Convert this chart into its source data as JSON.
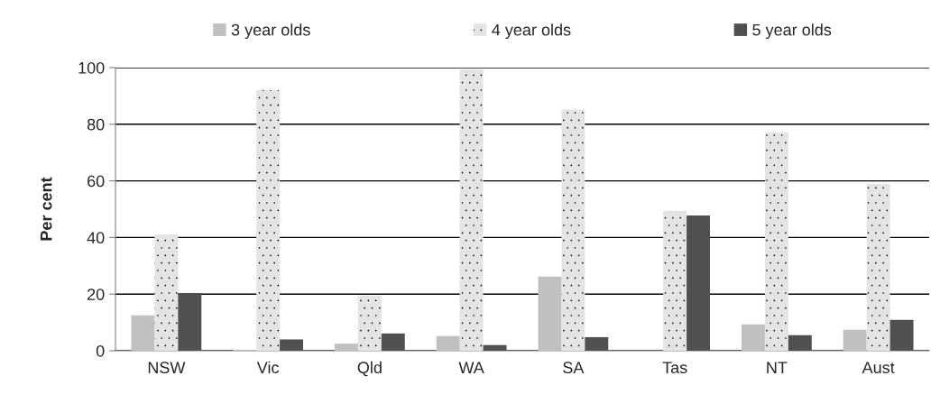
{
  "chart_data": {
    "type": "bar",
    "ylabel": "Per cent",
    "categories": [
      "NSW",
      "Vic",
      "Qld",
      "WA",
      "SA",
      "Tas",
      "NT",
      "Aust"
    ],
    "series": [
      {
        "name": "3 year olds",
        "color": "#c0c0c0",
        "values": [
          12.5,
          0.3,
          2.5,
          5.2,
          26.2,
          0,
          9.3,
          7.4
        ]
      },
      {
        "name": "4 year olds",
        "color": "#e4e4e4",
        "values": [
          41.1,
          92.1,
          19.5,
          99.4,
          85.2,
          49.4,
          77.1,
          58.9
        ]
      },
      {
        "name": "5 year olds",
        "color": "#505050",
        "values": [
          20.4,
          4.0,
          6.1,
          2.0,
          4.8,
          47.8,
          5.5,
          10.9
        ]
      }
    ],
    "ylim": [
      0,
      100
    ],
    "yticks": [
      0,
      20,
      40,
      60,
      80,
      100
    ],
    "grid": "y",
    "legend": "top"
  }
}
